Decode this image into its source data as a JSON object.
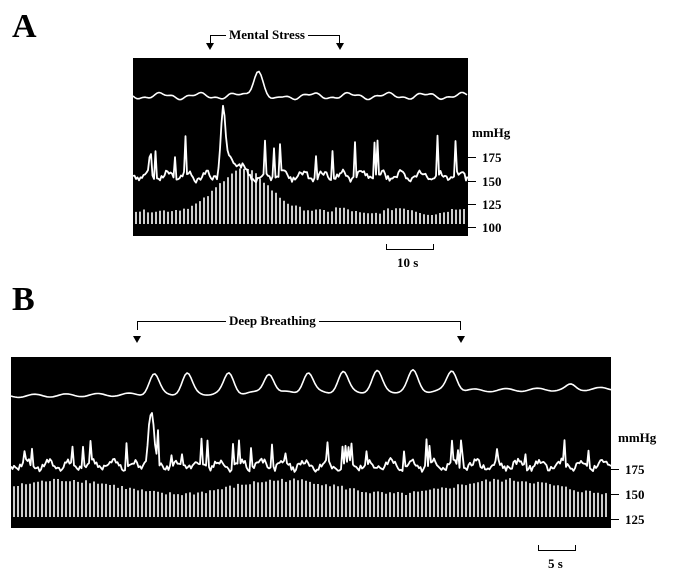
{
  "panel_a": {
    "letter": "A",
    "event_label": "Mental Stress",
    "unit": "mmHg",
    "ticks": [
      "175",
      "150",
      "125",
      "100"
    ],
    "scale_label": "10 s"
  },
  "panel_b": {
    "letter": "B",
    "event_label": "Deep Breathing",
    "unit": "mmHg",
    "ticks": [
      "175",
      "150",
      "125"
    ],
    "scale_label": "5 s"
  },
  "colors": {
    "trace": "#ffffff",
    "background": "#000000"
  }
}
